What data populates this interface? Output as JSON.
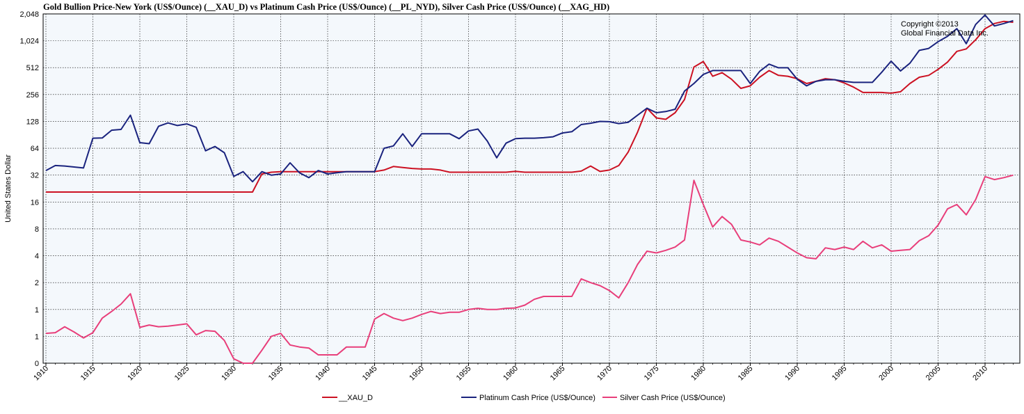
{
  "title": "Gold Bullion Price-New York (US$/Ounce) (__XAU_D)  vs  Platinum Cash Price (US$/Ounce) (__PL_NYD), Silver Cash Price (US$/Ounce) (__XAG_HD)",
  "copyright": [
    "Copyright ©2013",
    "Global Financial Data Inc."
  ],
  "colors": {
    "gold": "#cc1122",
    "platinum": "#1a237e",
    "silver": "#e83e7a",
    "plot_bg": "#f4f8fc",
    "grid": "#000000"
  },
  "chart_data": {
    "type": "line",
    "title": "Gold Bullion Price-New York (US$/Ounce) (__XAU_D)  vs  Platinum Cash Price (US$/Ounce) (__PL_NYD), Silver Cash Price (US$/Ounce) (__XAG_HD)",
    "ylabel": "United States Dollar",
    "xlabel": "",
    "y_scale": "log2",
    "grid": true,
    "legend_position": "bottom",
    "xlim": [
      1910,
      2013
    ],
    "x_ticks": [
      1910,
      1915,
      1920,
      1925,
      1930,
      1935,
      1940,
      1945,
      1950,
      1955,
      1960,
      1965,
      1970,
      1975,
      1980,
      1985,
      1990,
      1995,
      2000,
      2005,
      2010
    ],
    "y_tick_labels": [
      "0",
      "1",
      "1",
      "2",
      "4",
      "8",
      "16",
      "32",
      "64",
      "128",
      "256",
      "512",
      "1,024",
      "2,048"
    ],
    "series": [
      {
        "name": "__XAU_D",
        "color": "#cc1122",
        "start_year": 1910,
        "values": [
          20.67,
          20.67,
          20.67,
          20.67,
          20.67,
          20.67,
          20.67,
          20.67,
          20.67,
          20.67,
          20.67,
          20.67,
          20.67,
          20.67,
          20.67,
          20.67,
          20.67,
          20.67,
          20.67,
          20.67,
          20.67,
          20.67,
          20.67,
          33,
          34.5,
          35,
          35,
          35,
          35,
          35,
          35,
          35,
          35,
          35,
          35,
          35,
          36.5,
          40,
          39,
          38,
          37.5,
          37.5,
          36.5,
          34.5,
          34.5,
          34.5,
          34.5,
          34.5,
          34.5,
          34.5,
          35.3,
          34.5,
          34.5,
          34.5,
          34.5,
          34.5,
          34.5,
          35.5,
          40.5,
          35.2,
          36.5,
          41,
          58,
          97,
          180,
          140,
          135,
          160,
          225,
          520,
          600,
          410,
          450,
          380,
          300,
          320,
          400,
          475,
          420,
          410,
          385,
          340,
          360,
          385,
          375,
          345,
          310,
          270,
          270,
          270,
          265,
          275,
          340,
          400,
          420,
          490,
          590,
          780,
          830,
          1050,
          1400,
          1600,
          1690,
          1650
        ]
      },
      {
        "name": "Platinum Cash Price (US$/Ounce)",
        "color": "#1a237e",
        "start_year": 1910,
        "values": [
          36,
          41,
          40.5,
          39.5,
          38.5,
          83,
          83.5,
          102,
          104,
          150,
          74,
          72,
          113,
          123,
          115,
          120,
          110,
          60,
          67,
          57,
          31,
          35,
          27,
          35,
          32,
          33,
          44,
          34,
          30,
          36,
          33,
          34,
          35,
          35,
          35,
          35,
          64,
          68,
          93,
          67,
          93,
          93,
          93,
          93,
          82,
          100,
          105,
          77,
          50,
          73,
          82,
          83,
          83,
          84,
          86,
          95,
          98,
          118,
          122,
          128,
          127,
          121,
          125,
          150,
          180,
          160,
          165,
          175,
          280,
          340,
          430,
          475,
          475,
          475,
          475,
          340,
          465,
          560,
          510,
          510,
          380,
          320,
          360,
          375,
          375,
          360,
          350,
          350,
          350,
          455,
          605,
          470,
          575,
          800,
          840,
          1000,
          1150,
          1400,
          950,
          1560,
          1990,
          1500,
          1600,
          1720
        ]
      },
      {
        "name": "Silver Cash Price (US$/Ounce)",
        "color": "#e83e7a",
        "start_year": 1910,
        "values": [
          0.54,
          0.55,
          0.64,
          0.56,
          0.48,
          0.55,
          0.8,
          0.95,
          1.15,
          1.5,
          0.63,
          0.67,
          0.64,
          0.65,
          0.67,
          0.69,
          0.52,
          0.58,
          0.57,
          0.45,
          0.28,
          0.25,
          0.19,
          0.35,
          0.5,
          0.54,
          0.4,
          0.38,
          0.37,
          0.31,
          0.31,
          0.31,
          0.38,
          0.38,
          0.38,
          0.78,
          0.9,
          0.8,
          0.75,
          0.8,
          0.88,
          0.95,
          0.9,
          0.93,
          0.93,
          1.0,
          1.03,
          1.0,
          1.0,
          1.03,
          1.04,
          1.12,
          1.3,
          1.4,
          1.4,
          1.4,
          1.4,
          2.2,
          2.0,
          1.85,
          1.63,
          1.35,
          2.0,
          3.2,
          4.5,
          4.3,
          4.6,
          5.0,
          6.0,
          28.0,
          15.0,
          8.4,
          11.0,
          9.0,
          6.0,
          5.7,
          5.3,
          6.3,
          5.8,
          5.0,
          4.3,
          3.8,
          3.7,
          4.9,
          4.7,
          5.0,
          4.7,
          5.8,
          4.9,
          5.3,
          4.5,
          4.6,
          4.7,
          5.9,
          6.7,
          8.8,
          13.4,
          15.0,
          11.5,
          17.0,
          30.8,
          28.5,
          30.0,
          32.0
        ]
      }
    ]
  }
}
